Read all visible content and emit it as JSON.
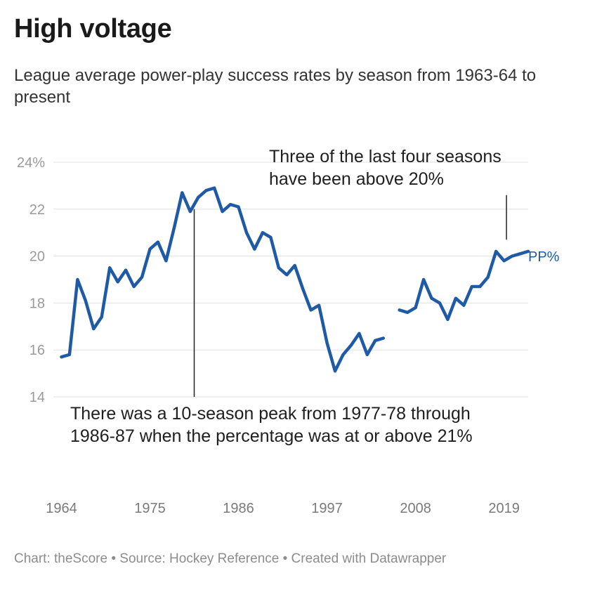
{
  "title": "High voltage",
  "subtitle": "League average power-play success rates by season from 1963-64 to present",
  "footer": "Chart: theScore • Source: Hockey Reference • Created with Datawrapper",
  "colors": {
    "line": "#1f5aa6",
    "grid": "#e1e1e1",
    "annotation_line": "#222222"
  },
  "chart_data": {
    "type": "line",
    "title": "High voltage",
    "xlabel": "",
    "ylabel": "",
    "ylim": [
      14,
      24
    ],
    "xlim": [
      1963,
      2022
    ],
    "y_ticks": [
      {
        "value": 24,
        "label": "24%"
      },
      {
        "value": 22,
        "label": "22"
      },
      {
        "value": 20,
        "label": "20"
      },
      {
        "value": 18,
        "label": "18"
      },
      {
        "value": 16,
        "label": "16"
      },
      {
        "value": 14,
        "label": "14"
      }
    ],
    "x_ticks": [
      {
        "value": 1964,
        "label": "1964"
      },
      {
        "value": 1975,
        "label": "1975"
      },
      {
        "value": 1986,
        "label": "1986"
      },
      {
        "value": 1997,
        "label": "1997"
      },
      {
        "value": 2008,
        "label": "2008"
      },
      {
        "value": 2019,
        "label": "2019"
      }
    ],
    "grid": true,
    "series": [
      {
        "name": "PP%",
        "x": [
          1964,
          1965,
          1966,
          1967,
          1968,
          1969,
          1970,
          1971,
          1972,
          1973,
          1974,
          1975,
          1976,
          1977,
          1978,
          1979,
          1980,
          1981,
          1982,
          1983,
          1984,
          1985,
          1986,
          1987,
          1988,
          1989,
          1990,
          1991,
          1992,
          1993,
          1994,
          1995,
          1996,
          1997,
          1998,
          1999,
          2000,
          2001,
          2002,
          2003,
          2004,
          2006,
          2007,
          2008,
          2009,
          2010,
          2011,
          2012,
          2013,
          2014,
          2015,
          2016,
          2017,
          2018,
          2019,
          2020,
          2021,
          2022
        ],
        "y": [
          15.7,
          15.8,
          19.0,
          18.1,
          16.9,
          17.4,
          19.5,
          18.9,
          19.4,
          18.7,
          19.1,
          20.3,
          20.6,
          19.8,
          21.2,
          22.7,
          21.9,
          22.5,
          22.8,
          22.9,
          21.9,
          22.2,
          22.1,
          21.0,
          20.3,
          21.0,
          20.8,
          19.5,
          19.2,
          19.6,
          18.6,
          17.7,
          17.9,
          16.3,
          15.1,
          15.8,
          16.2,
          16.7,
          15.8,
          16.4,
          16.5,
          17.7,
          17.6,
          17.8,
          19.0,
          18.2,
          18.0,
          17.3,
          18.2,
          17.9,
          18.7,
          18.7,
          19.1,
          20.2,
          19.8,
          20.0,
          20.1,
          20.2
        ],
        "gaps_after": [
          2004
        ]
      }
    ],
    "annotations": [
      {
        "text": "Three of the last four seasons have been above 20%",
        "at_x": 2019.3,
        "line_from_y": 22.6,
        "line_to_y": 20.7
      },
      {
        "text": "There was a 10-season peak from 1977-78 through 1986-87 when the percentage was at or above 21%",
        "at_x": 1980.5,
        "line_from_y": 22.0,
        "line_to_y": 14.0
      }
    ],
    "legend": "inline-right"
  }
}
